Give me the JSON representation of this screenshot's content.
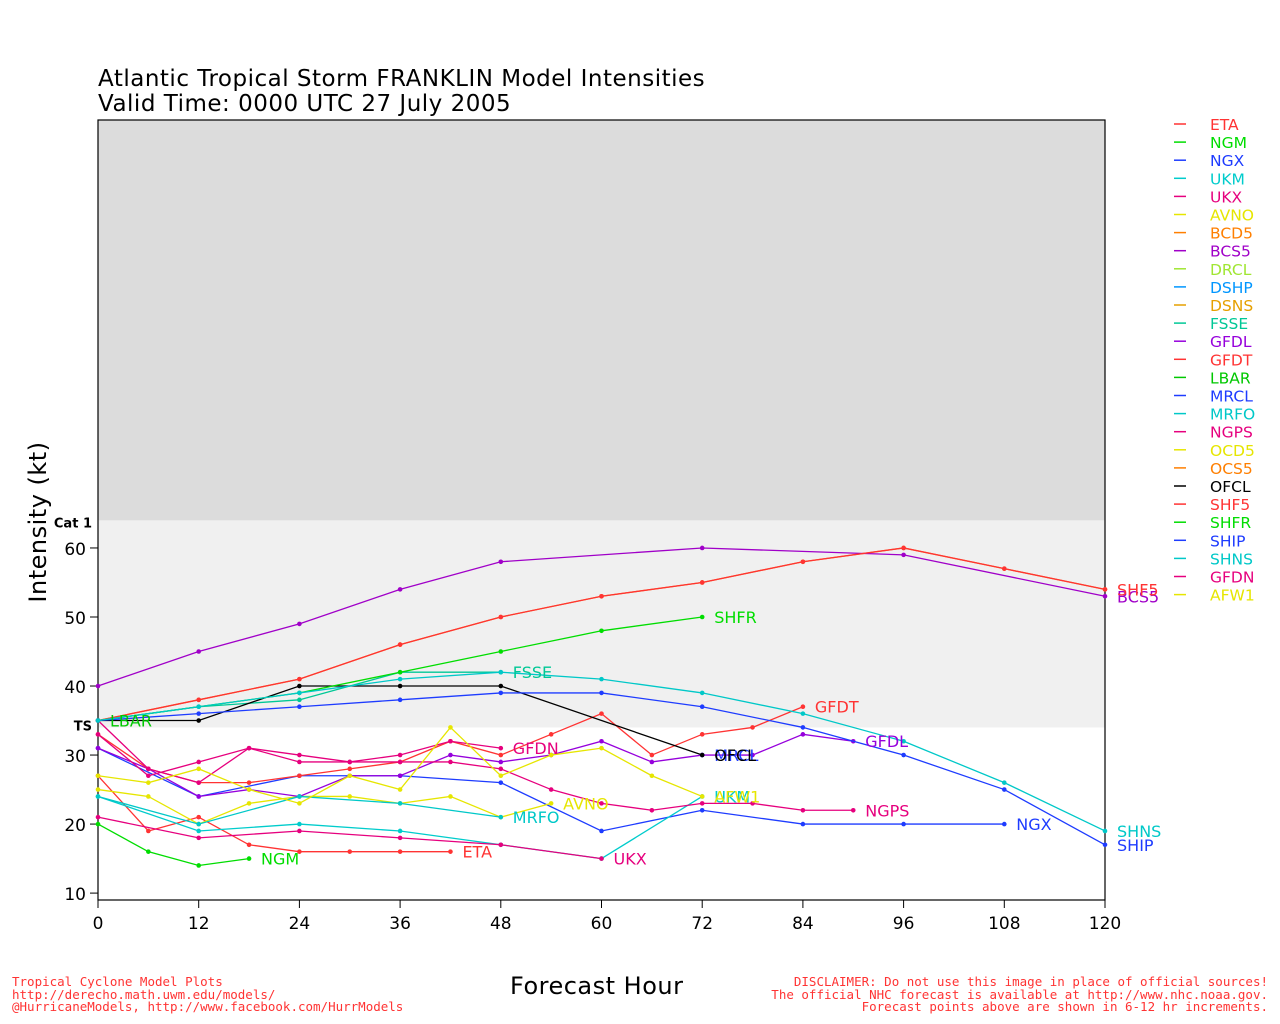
{
  "chart_data": {
    "type": "line",
    "title": "Atlantic Tropical Storm FRANKLIN Model Intensities",
    "subtitle": "Valid Time: 0000 UTC 27 July 2005",
    "xlabel": "Forecast Hour",
    "ylabel": "Intensity (kt)",
    "xlim": [
      0,
      120
    ],
    "ylim": [
      9,
      122
    ],
    "x_ticks": [
      0,
      12,
      24,
      36,
      48,
      60,
      72,
      84,
      96,
      108,
      120
    ],
    "y_ticks": [
      10,
      20,
      30,
      40,
      50,
      60
    ],
    "thresholds": [
      {
        "label": "TS",
        "value": 34,
        "shade": "#f0f0f0"
      },
      {
        "label": "Cat 1",
        "value": 64,
        "shade": "#dcdcdc"
      }
    ],
    "legend_position": "right",
    "series": [
      {
        "name": "ETA",
        "color": "#ff3333",
        "x": [
          0,
          6,
          12,
          18,
          24,
          30,
          36,
          42
        ],
        "y": [
          27,
          19,
          21,
          17,
          16,
          16,
          16,
          16
        ],
        "end_label": "ETA"
      },
      {
        "name": "NGM",
        "color": "#00dd00",
        "x": [
          0,
          6,
          12,
          18
        ],
        "y": [
          20,
          16,
          14,
          15
        ],
        "end_label": "NGM"
      },
      {
        "name": "NGX",
        "color": "#1e3cff",
        "x": [
          0,
          12,
          24,
          36,
          48,
          60,
          72,
          84,
          96,
          108
        ],
        "y": [
          31,
          24,
          27,
          27,
          26,
          19,
          22,
          20,
          20,
          20
        ],
        "end_label": "NGX"
      },
      {
        "name": "UKM",
        "color": "#00cccc",
        "x": [
          0,
          12,
          24,
          36,
          48,
          60,
          72
        ],
        "y": [
          24,
          19,
          20,
          19,
          17,
          15,
          24
        ],
        "end_label": "UKM"
      },
      {
        "name": "UKX",
        "color": "#e6007e",
        "x": [
          0,
          12,
          24,
          36,
          48,
          60
        ],
        "y": [
          21,
          18,
          19,
          18,
          17,
          15
        ],
        "end_label": "UKX"
      },
      {
        "name": "AVNO",
        "color": "#e6e600",
        "x": [
          0,
          6,
          12,
          18,
          24,
          30,
          36,
          42,
          48,
          54
        ],
        "y": [
          25,
          24,
          20,
          23,
          24,
          24,
          23,
          24,
          21,
          23
        ],
        "end_label": "AVNO"
      },
      {
        "name": "BCD5",
        "color": "#ff7f00",
        "x": [
          0,
          12,
          24,
          36,
          48,
          60,
          72,
          84,
          96,
          108,
          120
        ],
        "y": [
          35,
          38,
          41,
          46,
          50,
          53,
          55,
          58,
          60,
          57,
          54
        ],
        "end_label": ""
      },
      {
        "name": "BCS5",
        "color": "#a000c8",
        "x": [
          0,
          12,
          24,
          36,
          48,
          72,
          96,
          120
        ],
        "y": [
          40,
          45,
          49,
          54,
          58,
          60,
          59,
          53
        ],
        "end_label": "BCS5"
      },
      {
        "name": "DRCL",
        "color": "#a0e632",
        "x": [],
        "y": [],
        "end_label": ""
      },
      {
        "name": "DSHP",
        "color": "#0096ff",
        "x": [],
        "y": [],
        "end_label": ""
      },
      {
        "name": "DSNS",
        "color": "#e6a000",
        "x": [],
        "y": [],
        "end_label": ""
      },
      {
        "name": "FSSE",
        "color": "#00c896",
        "x": [
          0,
          12,
          24,
          36,
          48
        ],
        "y": [
          35,
          37,
          38,
          42,
          42
        ],
        "end_label": "FSSE"
      },
      {
        "name": "GFDL",
        "color": "#9600dc",
        "x": [
          0,
          6,
          12,
          18,
          24,
          30,
          36,
          42,
          48,
          54,
          60,
          66,
          72,
          78,
          84,
          90
        ],
        "y": [
          31,
          28,
          24,
          25,
          24,
          27,
          27,
          30,
          29,
          30,
          32,
          29,
          30,
          30,
          33,
          32
        ],
        "end_label": "GFDL"
      },
      {
        "name": "GFDT",
        "color": "#ff3333",
        "x": [
          0,
          6,
          12,
          18,
          24,
          30,
          36,
          42,
          48,
          54,
          60,
          66,
          72,
          78,
          84
        ],
        "y": [
          33,
          28,
          26,
          26,
          27,
          28,
          29,
          32,
          30,
          33,
          36,
          30,
          33,
          34,
          37
        ],
        "end_label": "GFDT"
      },
      {
        "name": "LBAR",
        "color": "#00c800",
        "x": [
          0
        ],
        "y": [
          35
        ],
        "end_label": "LBAR"
      },
      {
        "name": "MRCL",
        "color": "#1e3cff",
        "x": [
          72
        ],
        "y": [
          30
        ],
        "end_label": "MRCL"
      },
      {
        "name": "MRFO",
        "color": "#00c8c8",
        "x": [
          0,
          12,
          24,
          36,
          48
        ],
        "y": [
          24,
          20,
          24,
          23,
          21
        ],
        "end_label": "MRFO"
      },
      {
        "name": "NGPS",
        "color": "#e6007e",
        "x": [
          0,
          6,
          12,
          18,
          24,
          30,
          36,
          42,
          48,
          54,
          60,
          66,
          72,
          78,
          84,
          90
        ],
        "y": [
          35,
          28,
          26,
          31,
          29,
          29,
          29,
          29,
          28,
          25,
          23,
          22,
          23,
          23,
          22,
          22
        ],
        "end_label": "NGPS"
      },
      {
        "name": "OCD5",
        "color": "#e6e600",
        "x": [],
        "y": [],
        "end_label": ""
      },
      {
        "name": "OCS5",
        "color": "#ff7f00",
        "x": [],
        "y": [],
        "end_label": ""
      },
      {
        "name": "OFCL",
        "color": "#000000",
        "x": [
          0,
          12,
          24,
          36,
          48,
          72
        ],
        "y": [
          35,
          35,
          40,
          40,
          40,
          30
        ],
        "end_label": "OFCL"
      },
      {
        "name": "SHF5",
        "color": "#ff3333",
        "x": [
          0,
          12,
          24,
          36,
          48,
          60,
          72,
          84,
          96,
          108,
          120
        ],
        "y": [
          35,
          38,
          41,
          46,
          50,
          53,
          55,
          58,
          60,
          57,
          54
        ],
        "end_label": "SHF5"
      },
      {
        "name": "SHFR",
        "color": "#00dd00",
        "x": [
          0,
          24,
          36,
          48,
          60,
          72
        ],
        "y": [
          35,
          39,
          42,
          45,
          48,
          50
        ],
        "end_label": "SHFR"
      },
      {
        "name": "SHIP",
        "color": "#1e3cff",
        "x": [
          0,
          12,
          24,
          36,
          48,
          60,
          72,
          84,
          96,
          108,
          120
        ],
        "y": [
          35,
          36,
          37,
          38,
          39,
          39,
          37,
          34,
          30,
          25,
          17
        ],
        "end_label": "SHIP"
      },
      {
        "name": "SHNS",
        "color": "#00c8c8",
        "x": [
          0,
          12,
          24,
          36,
          48,
          60,
          72,
          84,
          96,
          108,
          120
        ],
        "y": [
          35,
          37,
          39,
          41,
          42,
          41,
          39,
          36,
          32,
          26,
          19
        ],
        "end_label": "SHNS"
      },
      {
        "name": "GFDN",
        "color": "#e6007e",
        "x": [
          0,
          6,
          12,
          18,
          24,
          30,
          36,
          42,
          48
        ],
        "y": [
          33,
          27,
          29,
          31,
          30,
          29,
          30,
          32,
          31
        ],
        "end_label": "GFDN"
      },
      {
        "name": "AFW1",
        "color": "#e6e600",
        "x": [
          0,
          6,
          12,
          18,
          24,
          30,
          36,
          42,
          48,
          54,
          60,
          66,
          72
        ],
        "y": [
          27,
          26,
          28,
          25,
          23,
          27,
          25,
          34,
          27,
          30,
          31,
          27,
          24
        ],
        "end_label": "AFW1"
      }
    ]
  },
  "footer": {
    "left_lines": [
      "Tropical Cyclone Model Plots",
      "http://derecho.math.uwm.edu/models/",
      "@HurricaneModels, http://www.facebook.com/HurrModels"
    ],
    "right_lines": [
      "DISCLAIMER: Do not use this image in place of official sources!",
      "The official NHC forecast is available at http://www.nhc.noaa.gov.",
      "Forecast points above are shown in 6-12 hr increments."
    ]
  }
}
